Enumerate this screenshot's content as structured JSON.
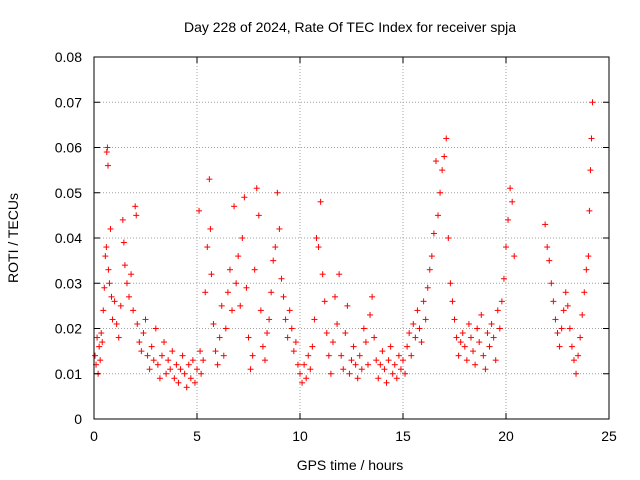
{
  "chart_data": {
    "type": "scatter",
    "title": "Day 228 of 2024, Rate Of TEC Index for receiver spja",
    "xlabel": "GPS time / hours",
    "ylabel": "ROTI / TECUs",
    "xlim": [
      0,
      25
    ],
    "ylim": [
      0,
      0.08
    ],
    "xticks": [
      0,
      5,
      10,
      15,
      20,
      25
    ],
    "xtick_labels": [
      "0",
      "5",
      "10",
      "15",
      "20",
      "25"
    ],
    "yticks": [
      0,
      0.01,
      0.02,
      0.03,
      0.04,
      0.05,
      0.06,
      0.07,
      0.08
    ],
    "ytick_labels": [
      "0",
      "0.01",
      "0.02",
      "0.03",
      "0.04",
      "0.05",
      "0.06",
      "0.07",
      "0.08"
    ],
    "grid": true,
    "marker": "+",
    "color": "#ff0000",
    "series": [
      {
        "name": "ROTI",
        "points": [
          [
            0.05,
            0.014
          ],
          [
            0.1,
            0.012
          ],
          [
            0.15,
            0.018
          ],
          [
            0.2,
            0.01
          ],
          [
            0.25,
            0.016
          ],
          [
            0.3,
            0.013
          ],
          [
            0.35,
            0.019
          ],
          [
            0.4,
            0.017
          ],
          [
            0.45,
            0.024
          ],
          [
            0.5,
            0.029
          ],
          [
            0.55,
            0.036
          ],
          [
            0.6,
            0.038
          ],
          [
            0.62,
            0.059
          ],
          [
            0.65,
            0.06
          ],
          [
            0.68,
            0.056
          ],
          [
            0.7,
            0.033
          ],
          [
            0.75,
            0.03
          ],
          [
            0.8,
            0.042
          ],
          [
            0.85,
            0.027
          ],
          [
            0.9,
            0.022
          ],
          [
            1.0,
            0.026
          ],
          [
            1.1,
            0.021
          ],
          [
            1.2,
            0.018
          ],
          [
            1.3,
            0.025
          ],
          [
            1.4,
            0.044
          ],
          [
            1.45,
            0.039
          ],
          [
            1.5,
            0.034
          ],
          [
            1.6,
            0.03
          ],
          [
            1.7,
            0.027
          ],
          [
            1.8,
            0.032
          ],
          [
            1.9,
            0.024
          ],
          [
            2.0,
            0.047
          ],
          [
            2.05,
            0.045
          ],
          [
            2.1,
            0.021
          ],
          [
            2.2,
            0.017
          ],
          [
            2.3,
            0.015
          ],
          [
            2.4,
            0.019
          ],
          [
            2.5,
            0.022
          ],
          [
            2.6,
            0.014
          ],
          [
            2.7,
            0.011
          ],
          [
            2.8,
            0.016
          ],
          [
            2.9,
            0.013
          ],
          [
            3.0,
            0.02
          ],
          [
            3.1,
            0.012
          ],
          [
            3.2,
            0.009
          ],
          [
            3.3,
            0.014
          ],
          [
            3.4,
            0.017
          ],
          [
            3.5,
            0.01
          ],
          [
            3.6,
            0.013
          ],
          [
            3.7,
            0.011
          ],
          [
            3.8,
            0.015
          ],
          [
            3.9,
            0.009
          ],
          [
            4.0,
            0.012
          ],
          [
            4.1,
            0.008
          ],
          [
            4.2,
            0.011
          ],
          [
            4.3,
            0.014
          ],
          [
            4.4,
            0.01
          ],
          [
            4.5,
            0.007
          ],
          [
            4.6,
            0.012
          ],
          [
            4.7,
            0.009
          ],
          [
            4.8,
            0.013
          ],
          [
            4.9,
            0.008
          ],
          [
            5.0,
            0.011
          ],
          [
            5.1,
            0.046
          ],
          [
            5.15,
            0.015
          ],
          [
            5.2,
            0.01
          ],
          [
            5.3,
            0.013
          ],
          [
            5.4,
            0.028
          ],
          [
            5.5,
            0.038
          ],
          [
            5.6,
            0.053
          ],
          [
            5.65,
            0.042
          ],
          [
            5.7,
            0.032
          ],
          [
            5.8,
            0.021
          ],
          [
            5.9,
            0.015
          ],
          [
            6.0,
            0.012
          ],
          [
            6.1,
            0.018
          ],
          [
            6.2,
            0.025
          ],
          [
            6.3,
            0.014
          ],
          [
            6.4,
            0.02
          ],
          [
            6.5,
            0.028
          ],
          [
            6.6,
            0.033
          ],
          [
            6.7,
            0.024
          ],
          [
            6.8,
            0.047
          ],
          [
            6.9,
            0.03
          ],
          [
            7.0,
            0.036
          ],
          [
            7.1,
            0.025
          ],
          [
            7.2,
            0.04
          ],
          [
            7.3,
            0.049
          ],
          [
            7.4,
            0.029
          ],
          [
            7.5,
            0.018
          ],
          [
            7.6,
            0.011
          ],
          [
            7.7,
            0.014
          ],
          [
            7.8,
            0.033
          ],
          [
            7.9,
            0.051
          ],
          [
            8.0,
            0.045
          ],
          [
            8.1,
            0.024
          ],
          [
            8.2,
            0.016
          ],
          [
            8.3,
            0.013
          ],
          [
            8.4,
            0.019
          ],
          [
            8.5,
            0.022
          ],
          [
            8.6,
            0.028
          ],
          [
            8.7,
            0.035
          ],
          [
            8.8,
            0.038
          ],
          [
            8.9,
            0.05
          ],
          [
            9.0,
            0.042
          ],
          [
            9.1,
            0.031
          ],
          [
            9.2,
            0.027
          ],
          [
            9.3,
            0.022
          ],
          [
            9.4,
            0.018
          ],
          [
            9.5,
            0.024
          ],
          [
            9.6,
            0.02
          ],
          [
            9.7,
            0.015
          ],
          [
            9.8,
            0.017
          ],
          [
            9.9,
            0.012
          ],
          [
            10.0,
            0.01
          ],
          [
            10.1,
            0.008
          ],
          [
            10.2,
            0.012
          ],
          [
            10.3,
            0.009
          ],
          [
            10.4,
            0.014
          ],
          [
            10.5,
            0.011
          ],
          [
            10.6,
            0.016
          ],
          [
            10.7,
            0.022
          ],
          [
            10.8,
            0.04
          ],
          [
            10.9,
            0.038
          ],
          [
            11.0,
            0.048
          ],
          [
            11.1,
            0.032
          ],
          [
            11.2,
            0.026
          ],
          [
            11.3,
            0.019
          ],
          [
            11.4,
            0.014
          ],
          [
            11.5,
            0.01
          ],
          [
            11.6,
            0.017
          ],
          [
            11.7,
            0.027
          ],
          [
            11.8,
            0.021
          ],
          [
            11.9,
            0.032
          ],
          [
            12.0,
            0.014
          ],
          [
            12.1,
            0.011
          ],
          [
            12.2,
            0.019
          ],
          [
            12.3,
            0.025
          ],
          [
            12.4,
            0.01
          ],
          [
            12.5,
            0.013
          ],
          [
            12.6,
            0.016
          ],
          [
            12.7,
            0.012
          ],
          [
            12.8,
            0.009
          ],
          [
            12.9,
            0.014
          ],
          [
            13.0,
            0.011
          ],
          [
            13.1,
            0.02
          ],
          [
            13.2,
            0.017
          ],
          [
            13.3,
            0.012
          ],
          [
            13.4,
            0.023
          ],
          [
            13.5,
            0.027
          ],
          [
            13.6,
            0.018
          ],
          [
            13.7,
            0.013
          ],
          [
            13.8,
            0.009
          ],
          [
            13.9,
            0.012
          ],
          [
            14.0,
            0.015
          ],
          [
            14.1,
            0.011
          ],
          [
            14.2,
            0.008
          ],
          [
            14.3,
            0.013
          ],
          [
            14.4,
            0.016
          ],
          [
            14.5,
            0.01
          ],
          [
            14.6,
            0.012
          ],
          [
            14.7,
            0.009
          ],
          [
            14.8,
            0.014
          ],
          [
            14.9,
            0.011
          ],
          [
            15.0,
            0.013
          ],
          [
            15.1,
            0.01
          ],
          [
            15.2,
            0.016
          ],
          [
            15.3,
            0.019
          ],
          [
            15.4,
            0.014
          ],
          [
            15.5,
            0.021
          ],
          [
            15.6,
            0.018
          ],
          [
            15.7,
            0.024
          ],
          [
            15.8,
            0.02
          ],
          [
            15.9,
            0.017
          ],
          [
            16.0,
            0.026
          ],
          [
            16.1,
            0.022
          ],
          [
            16.2,
            0.029
          ],
          [
            16.3,
            0.033
          ],
          [
            16.4,
            0.036
          ],
          [
            16.5,
            0.041
          ],
          [
            16.6,
            0.057
          ],
          [
            16.7,
            0.045
          ],
          [
            16.8,
            0.05
          ],
          [
            16.9,
            0.055
          ],
          [
            17.0,
            0.058
          ],
          [
            17.1,
            0.062
          ],
          [
            17.2,
            0.04
          ],
          [
            17.3,
            0.03
          ],
          [
            17.4,
            0.026
          ],
          [
            17.5,
            0.022
          ],
          [
            17.6,
            0.018
          ],
          [
            17.7,
            0.014
          ],
          [
            17.8,
            0.017
          ],
          [
            17.9,
            0.019
          ],
          [
            18.0,
            0.016
          ],
          [
            18.1,
            0.013
          ],
          [
            18.2,
            0.021
          ],
          [
            18.3,
            0.018
          ],
          [
            18.4,
            0.015
          ],
          [
            18.5,
            0.012
          ],
          [
            18.6,
            0.02
          ],
          [
            18.7,
            0.017
          ],
          [
            18.8,
            0.023
          ],
          [
            18.9,
            0.014
          ],
          [
            19.0,
            0.011
          ],
          [
            19.1,
            0.019
          ],
          [
            19.2,
            0.016
          ],
          [
            19.3,
            0.021
          ],
          [
            19.4,
            0.018
          ],
          [
            19.5,
            0.013
          ],
          [
            19.6,
            0.024
          ],
          [
            19.7,
            0.02
          ],
          [
            19.8,
            0.026
          ],
          [
            19.9,
            0.031
          ],
          [
            20.0,
            0.038
          ],
          [
            20.1,
            0.044
          ],
          [
            20.2,
            0.051
          ],
          [
            20.3,
            0.048
          ],
          [
            20.4,
            0.036
          ],
          [
            21.9,
            0.043
          ],
          [
            22.0,
            0.038
          ],
          [
            22.1,
            0.035
          ],
          [
            22.2,
            0.03
          ],
          [
            22.3,
            0.026
          ],
          [
            22.4,
            0.022
          ],
          [
            22.5,
            0.019
          ],
          [
            22.6,
            0.016
          ],
          [
            22.7,
            0.02
          ],
          [
            22.8,
            0.024
          ],
          [
            22.9,
            0.028
          ],
          [
            23.0,
            0.025
          ],
          [
            23.1,
            0.02
          ],
          [
            23.2,
            0.016
          ],
          [
            23.3,
            0.013
          ],
          [
            23.4,
            0.01
          ],
          [
            23.5,
            0.014
          ],
          [
            23.6,
            0.018
          ],
          [
            23.7,
            0.023
          ],
          [
            23.8,
            0.028
          ],
          [
            23.9,
            0.033
          ],
          [
            24.0,
            0.036
          ],
          [
            24.05,
            0.046
          ],
          [
            24.1,
            0.055
          ],
          [
            24.15,
            0.062
          ],
          [
            24.2,
            0.07
          ]
        ]
      }
    ]
  }
}
